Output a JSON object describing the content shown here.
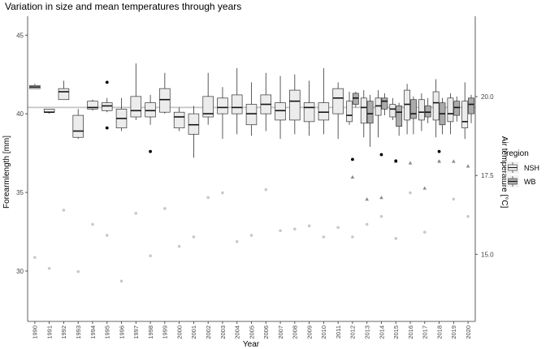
{
  "chart_data": {
    "type": "box",
    "title": "Variation in size and mean temperatures through years",
    "xlabel": "Year",
    "ylabel": "Forearmlength [mm]",
    "y2label": "Air temperature [°C]",
    "ylim": [
      26.8,
      46.2
    ],
    "y2lim": [
      12.87,
      22.55
    ],
    "yticks": [
      30,
      35,
      40,
      45
    ],
    "y2ticks": [
      "15.0",
      "17.5",
      "20.0"
    ],
    "x_categories": [
      "1990",
      "1991",
      "1992",
      "1993",
      "1994",
      "1995",
      "1996",
      "1997",
      "1998",
      "1999",
      "2000",
      "2001",
      "2002",
      "2003",
      "2004",
      "2005",
      "2006",
      "2007",
      "2008",
      "2009",
      "2010",
      "2011",
      "2012",
      "2013",
      "2014",
      "2015",
      "2016",
      "2017",
      "2018",
      "2019",
      "2020"
    ],
    "legend": {
      "title": "region",
      "entries": [
        "NSH",
        "WB"
      ],
      "placement": "right"
    },
    "reference_line": {
      "y": 40.4,
      "series": "NSH"
    },
    "series": [
      {
        "name": "NSH",
        "color": "#ececec",
        "boxes": [
          {
            "year": "1990",
            "min": 41.6,
            "q1": 41.6,
            "median": 41.7,
            "q3": 41.8,
            "max": 41.9
          },
          {
            "year": "1991",
            "min": 40.0,
            "q1": 40.1,
            "median": 40.1,
            "q3": 40.3,
            "max": 40.3
          },
          {
            "year": "1992",
            "min": 40.9,
            "q1": 40.9,
            "median": 41.4,
            "q3": 41.6,
            "max": 42.1
          },
          {
            "year": "1993",
            "min": 38.4,
            "q1": 38.5,
            "median": 38.9,
            "q3": 39.9,
            "max": 40.3
          },
          {
            "year": "1994",
            "min": 40.2,
            "q1": 40.3,
            "median": 40.4,
            "q3": 40.8,
            "max": 40.9
          },
          {
            "year": "1995",
            "min": 40.1,
            "q1": 40.2,
            "median": 40.5,
            "q3": 40.7,
            "max": 41.0,
            "outliers": [
              42.0,
              39.1
            ]
          },
          {
            "year": "1996",
            "min": 38.9,
            "q1": 39.1,
            "median": 39.7,
            "q3": 40.3,
            "max": 41.0
          },
          {
            "year": "1997",
            "min": 39.6,
            "q1": 39.8,
            "median": 40.2,
            "q3": 41.1,
            "max": 43.2
          },
          {
            "year": "1998",
            "min": 39.3,
            "q1": 39.8,
            "median": 40.2,
            "q3": 40.7,
            "max": 41.2,
            "outliers": [
              37.6
            ]
          },
          {
            "year": "1999",
            "min": 40.0,
            "q1": 40.1,
            "median": 40.9,
            "q3": 41.6,
            "max": 42.6
          },
          {
            "year": "2000",
            "min": 38.9,
            "q1": 39.1,
            "median": 39.8,
            "q3": 40.1,
            "max": 40.4
          },
          {
            "year": "2001",
            "min": 37.2,
            "q1": 38.7,
            "median": 39.3,
            "q3": 40.0,
            "max": 40.5
          },
          {
            "year": "2002",
            "min": 39.3,
            "q1": 39.8,
            "median": 40.0,
            "q3": 41.1,
            "max": 42.6
          },
          {
            "year": "2003",
            "min": 38.4,
            "q1": 40.0,
            "median": 40.4,
            "q3": 41.0,
            "max": 41.7
          },
          {
            "year": "2004",
            "min": 38.7,
            "q1": 40.0,
            "median": 40.4,
            "q3": 41.2,
            "max": 42.9
          },
          {
            "year": "2005",
            "min": 38.6,
            "q1": 39.3,
            "median": 40.0,
            "q3": 40.6,
            "max": 42.0
          },
          {
            "year": "2006",
            "min": 38.9,
            "q1": 40.0,
            "median": 40.6,
            "q3": 41.2,
            "max": 42.6
          },
          {
            "year": "2007",
            "min": 38.4,
            "q1": 39.6,
            "median": 40.2,
            "q3": 40.7,
            "max": 42.4
          },
          {
            "year": "2008",
            "min": 38.7,
            "q1": 39.6,
            "median": 40.8,
            "q3": 41.5,
            "max": 42.5
          },
          {
            "year": "2009",
            "min": 38.6,
            "q1": 39.5,
            "median": 40.4,
            "q3": 40.7,
            "max": 42.1
          },
          {
            "year": "2010",
            "min": 38.7,
            "q1": 39.6,
            "median": 40.1,
            "q3": 40.7,
            "max": 42.9
          },
          {
            "year": "2011",
            "min": 38.4,
            "q1": 40.0,
            "median": 41.0,
            "q3": 41.6,
            "max": 42.0
          },
          {
            "year": "2012",
            "min": 39.3,
            "q1": 39.5,
            "median": 39.9,
            "q3": 40.8,
            "max": 41.4,
            "outliers": [
              37.1
            ]
          },
          {
            "year": "2013",
            "min": 38.5,
            "q1": 39.4,
            "median": 40.4,
            "q3": 41.0,
            "max": 41.5
          },
          {
            "year": "2014",
            "min": 38.5,
            "q1": 39.9,
            "median": 40.5,
            "q3": 41.0,
            "max": 41.5,
            "outliers": [
              37.4
            ]
          },
          {
            "year": "2015",
            "min": 39.6,
            "q1": 39.8,
            "median": 40.3,
            "q3": 40.6,
            "max": 41.0,
            "outliers": [
              37.0
            ]
          },
          {
            "year": "2016",
            "min": 38.7,
            "q1": 39.6,
            "median": 40.6,
            "q3": 41.5,
            "max": 41.9
          },
          {
            "year": "2017",
            "min": 38.9,
            "q1": 39.6,
            "median": 40.1,
            "q3": 40.9,
            "max": 41.3
          },
          {
            "year": "2018",
            "min": 38.5,
            "q1": 39.6,
            "median": 40.7,
            "q3": 41.4,
            "max": 42.2,
            "outliers": [
              37.6
            ]
          },
          {
            "year": "2019",
            "min": 38.7,
            "q1": 39.5,
            "median": 40.0,
            "q3": 41.0,
            "max": 41.3
          },
          {
            "year": "2020",
            "min": 38.4,
            "q1": 39.1,
            "median": 39.5,
            "q3": 40.8,
            "max": 42.0
          }
        ]
      },
      {
        "name": "WB",
        "color": "#ababab",
        "boxes": [
          {
            "year": "2012",
            "min": 40.4,
            "q1": 40.6,
            "median": 41.0,
            "q3": 41.3,
            "max": 41.4
          },
          {
            "year": "2013",
            "min": 37.9,
            "q1": 39.4,
            "median": 40.0,
            "q3": 40.8,
            "max": 41.2
          },
          {
            "year": "2014",
            "min": 39.9,
            "q1": 40.3,
            "median": 40.8,
            "q3": 41.0,
            "max": 41.3
          },
          {
            "year": "2015",
            "min": 38.6,
            "q1": 39.2,
            "median": 40.1,
            "q3": 40.5,
            "max": 40.7
          },
          {
            "year": "2016",
            "min": 38.7,
            "q1": 39.7,
            "median": 40.0,
            "q3": 40.9,
            "max": 41.1
          },
          {
            "year": "2017",
            "min": 39.4,
            "q1": 39.8,
            "median": 40.1,
            "q3": 40.5,
            "max": 41.0
          },
          {
            "year": "2018",
            "min": 38.7,
            "q1": 39.3,
            "median": 40.0,
            "q3": 40.7,
            "max": 41.0
          },
          {
            "year": "2019",
            "min": 39.5,
            "q1": 39.9,
            "median": 40.4,
            "q3": 40.8,
            "max": 41.1
          },
          {
            "year": "2020",
            "min": 39.4,
            "q1": 40.0,
            "median": 40.6,
            "q3": 41.0,
            "max": 41.2
          }
        ]
      }
    ],
    "temperature_points": {
      "NSH": [
        {
          "year": "1990",
          "value": 14.9
        },
        {
          "year": "1991",
          "value": 14.55
        },
        {
          "year": "1992",
          "value": 16.4
        },
        {
          "year": "1993",
          "value": 14.45
        },
        {
          "year": "1994",
          "value": 15.95
        },
        {
          "year": "1995",
          "value": 15.6
        },
        {
          "year": "1996",
          "value": 14.15
        },
        {
          "year": "1997",
          "value": 16.3
        },
        {
          "year": "1998",
          "value": 14.95
        },
        {
          "year": "1999",
          "value": 16.45
        },
        {
          "year": "2000",
          "value": 15.25
        },
        {
          "year": "2001",
          "value": 15.55
        },
        {
          "year": "2002",
          "value": 16.8
        },
        {
          "year": "2003",
          "value": 16.95
        },
        {
          "year": "2004",
          "value": 15.4
        },
        {
          "year": "2005",
          "value": 15.6
        },
        {
          "year": "2006",
          "value": 17.05
        },
        {
          "year": "2007",
          "value": 15.75
        },
        {
          "year": "2008",
          "value": 15.8
        },
        {
          "year": "2009",
          "value": 15.9
        },
        {
          "year": "2010",
          "value": 15.55
        },
        {
          "year": "2011",
          "value": 15.85
        },
        {
          "year": "2012",
          "value": 15.55
        },
        {
          "year": "2013",
          "value": 15.95
        },
        {
          "year": "2014",
          "value": 16.2
        },
        {
          "year": "2015",
          "value": 15.5
        },
        {
          "year": "2016",
          "value": 16.95
        },
        {
          "year": "2017",
          "value": 15.7
        },
        {
          "year": "2018",
          "value": 17.95
        },
        {
          "year": "2019",
          "value": 16.75
        },
        {
          "year": "2020",
          "value": 16.2
        }
      ],
      "WB": [
        {
          "year": "2012",
          "value": 17.45
        },
        {
          "year": "2013",
          "value": 16.75
        },
        {
          "year": "2014",
          "value": 16.8
        },
        {
          "year": "2015",
          "value": 17.95
        },
        {
          "year": "2016",
          "value": 17.9
        },
        {
          "year": "2017",
          "value": 17.1
        },
        {
          "year": "2018",
          "value": 17.95
        },
        {
          "year": "2019",
          "value": 17.95
        },
        {
          "year": "2020",
          "value": 17.8
        }
      ]
    }
  }
}
